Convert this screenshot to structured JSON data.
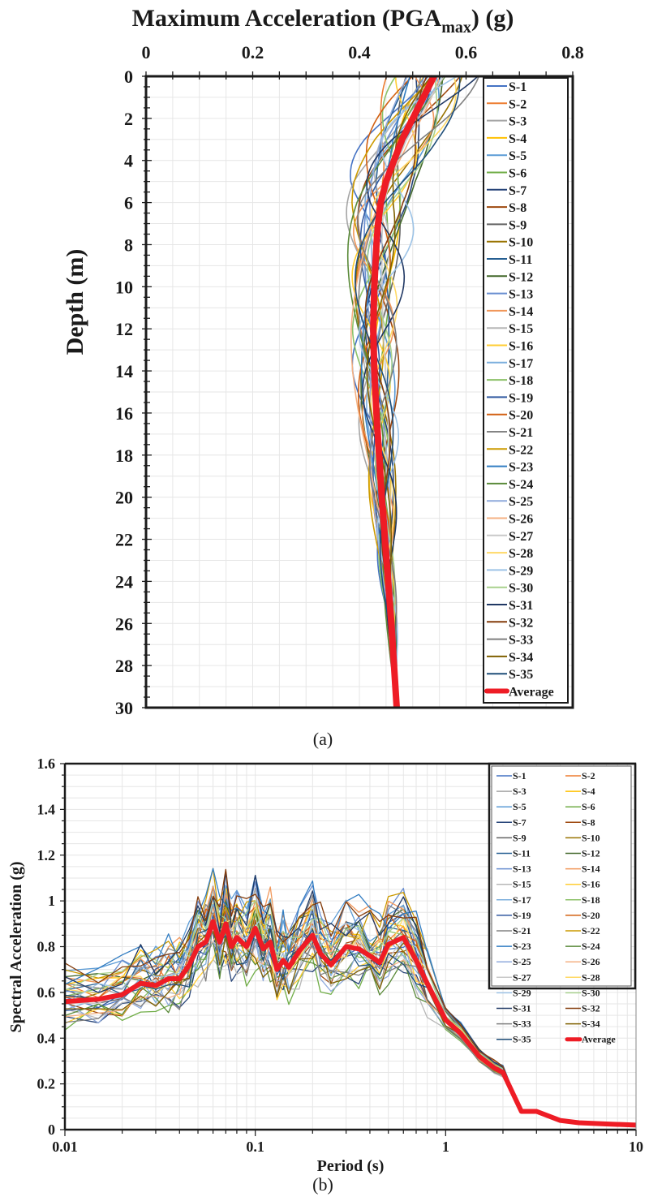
{
  "chart_data": [
    {
      "type": "line",
      "panel_label": "(a)",
      "title": "Maximum Acceleration (PGA",
      "title_sub": "max",
      "title_end": ") (g)",
      "xlabel": "Maximum Acceleration (PGAmax) (g)",
      "ylabel": "Depth (m)",
      "xlim": [
        0,
        0.8
      ],
      "ylim": [
        0,
        30
      ],
      "y_inverted": true,
      "x_axis_position": "top",
      "x_ticks": [
        "0",
        "0.2",
        "0.4",
        "0.6",
        "0.8"
      ],
      "y_ticks": [
        "0",
        "2",
        "4",
        "6",
        "8",
        "10",
        "12",
        "14",
        "16",
        "18",
        "20",
        "22",
        "24",
        "26",
        "28",
        "30"
      ],
      "grid": true,
      "legend_position": "right",
      "depth": [
        0,
        1,
        2,
        3,
        4,
        5,
        6,
        7,
        8,
        10,
        12,
        14,
        16,
        18,
        20,
        22,
        24,
        26,
        28,
        30
      ],
      "average": [
        0.54,
        0.52,
        0.5,
        0.48,
        0.465,
        0.45,
        0.44,
        0.435,
        0.432,
        0.428,
        0.426,
        0.428,
        0.432,
        0.437,
        0.442,
        0.448,
        0.454,
        0.46,
        0.465,
        0.47
      ],
      "series_names": [
        "S-1",
        "S-2",
        "S-3",
        "S-4",
        "S-5",
        "S-6",
        "S-7",
        "S-8",
        "S-9",
        "S-10",
        "S-11",
        "S-12",
        "S-13",
        "S-14",
        "S-15",
        "S-16",
        "S-17",
        "S-18",
        "S-19",
        "S-20",
        "S-21",
        "S-22",
        "S-23",
        "S-24",
        "S-25",
        "S-26",
        "S-27",
        "S-28",
        "S-29",
        "S-30",
        "S-31",
        "S-32",
        "S-33",
        "S-34",
        "S-35"
      ],
      "average_label": "Average"
    },
    {
      "type": "line",
      "panel_label": "(b)",
      "xlabel": "Period (s)",
      "ylabel": "Spectral Acceleration (g)",
      "xscale": "log",
      "xlim": [
        0.01,
        10
      ],
      "ylim": [
        0,
        1.6
      ],
      "x_ticks": [
        "0.01",
        "0.1",
        "1",
        "10"
      ],
      "y_ticks": [
        "0",
        "0.2",
        "0.4",
        "0.6",
        "0.8",
        "1",
        "1.2",
        "1.4",
        "1.6"
      ],
      "grid": true,
      "legend_position": "top-right",
      "period": [
        0.01,
        0.015,
        0.02,
        0.025,
        0.03,
        0.035,
        0.04,
        0.045,
        0.05,
        0.055,
        0.06,
        0.065,
        0.07,
        0.075,
        0.08,
        0.09,
        0.1,
        0.11,
        0.12,
        0.13,
        0.14,
        0.15,
        0.17,
        0.2,
        0.22,
        0.25,
        0.3,
        0.35,
        0.4,
        0.45,
        0.5,
        0.6,
        0.7,
        0.8,
        1.0,
        1.2,
        1.5,
        1.8,
        2.0,
        2.5,
        3.0,
        4.0,
        5.0,
        7.0,
        10.0
      ],
      "average": [
        0.56,
        0.57,
        0.59,
        0.64,
        0.63,
        0.66,
        0.66,
        0.72,
        0.8,
        0.82,
        0.91,
        0.82,
        0.9,
        0.8,
        0.84,
        0.8,
        0.88,
        0.79,
        0.82,
        0.7,
        0.74,
        0.71,
        0.78,
        0.85,
        0.77,
        0.72,
        0.8,
        0.79,
        0.76,
        0.73,
        0.81,
        0.84,
        0.74,
        0.64,
        0.48,
        0.42,
        0.32,
        0.27,
        0.25,
        0.08,
        0.08,
        0.04,
        0.03,
        0.025,
        0.02
      ],
      "series_names": [
        "S-1",
        "S-2",
        "S-3",
        "S-4",
        "S-5",
        "S-6",
        "S-7",
        "S-8",
        "S-9",
        "S-10",
        "S-11",
        "S-12",
        "S-13",
        "S-14",
        "S-15",
        "S-16",
        "S-17",
        "S-18",
        "S-19",
        "S-20",
        "S-21",
        "S-22",
        "S-23",
        "S-24",
        "S-25",
        "S-26",
        "S-27",
        "S-28",
        "S-29",
        "S-30",
        "S-31",
        "S-32",
        "S-33",
        "S-34",
        "S-35"
      ],
      "average_label": "Average"
    }
  ],
  "colors": {
    "series": [
      "#4472c4",
      "#ed7d31",
      "#a5a5a5",
      "#ffc000",
      "#5b9bd5",
      "#70ad47",
      "#264478",
      "#9e480e",
      "#636363",
      "#997300",
      "#255e91",
      "#43682b",
      "#698ed0",
      "#f1975a",
      "#b7b7b7",
      "#ffcd33",
      "#7cafdd",
      "#8cc168",
      "#335aa1",
      "#d26012",
      "#848484",
      "#cc9a00",
      "#327dc2",
      "#5a8a39",
      "#8faadc",
      "#f4b183",
      "#c9c9c9",
      "#ffd966",
      "#9dc3e6",
      "#a9d18e",
      "#203864",
      "#843c0c",
      "#7f7f7f",
      "#7f6000",
      "#1f4e79"
    ],
    "average": "#ee1c25",
    "axis": "#1a1a1a",
    "grid": "#e6e6e6"
  }
}
